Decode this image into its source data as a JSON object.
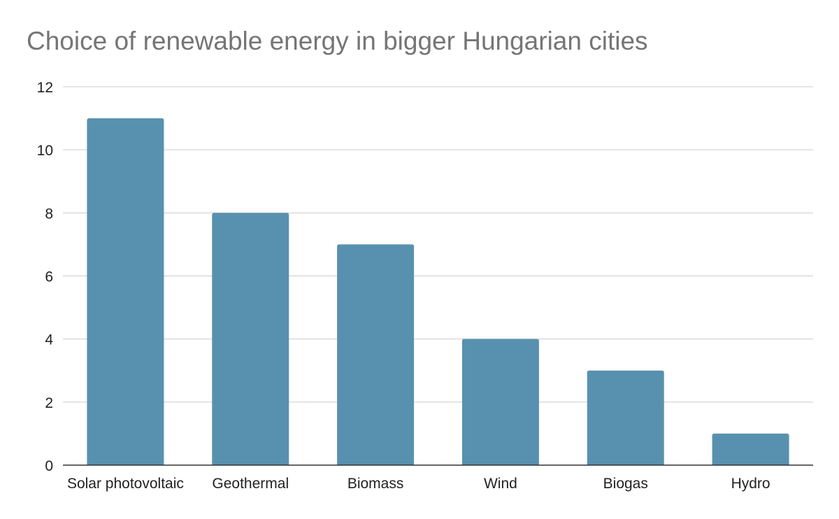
{
  "chart_data": {
    "type": "bar",
    "title": "Choice of renewable energy in bigger Hungarian cities",
    "xlabel": "",
    "ylabel": "",
    "categories": [
      "Solar photovoltaic",
      "Geothermal",
      "Biomass",
      "Wind",
      "Biogas",
      "Hydro"
    ],
    "values": [
      11,
      8,
      7,
      4,
      3,
      1
    ],
    "ylim": [
      0,
      12
    ],
    "yticks": [
      "0",
      "2",
      "4",
      "6",
      "8",
      "10",
      "12"
    ],
    "grid": true,
    "legend": "none",
    "colors": {
      "bar": "#5891af",
      "title": "#757575",
      "grid": "#cccccc",
      "axis": "#333333"
    }
  }
}
